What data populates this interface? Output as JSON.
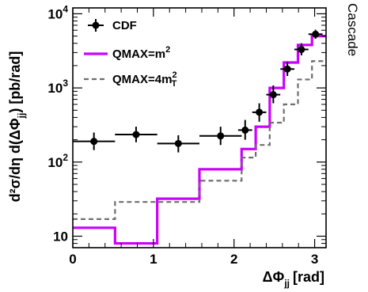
{
  "chart_data": {
    "type": "line",
    "side_label": "Cascade",
    "xlabel": {
      "main": "ΔΦ",
      "sub": "jj",
      "unit": "[rad]"
    },
    "ylabel": {
      "main": "d²σ/dη d(ΔΦ",
      "sub": "jj",
      "unit": ") [pb/rad]"
    },
    "xlim": [
      0,
      3.14159
    ],
    "ylim": [
      7,
      12000
    ],
    "yscale": "log",
    "x_ticks": [
      {
        "value": 0,
        "label": "0"
      },
      {
        "value": 1,
        "label": "1"
      },
      {
        "value": 2,
        "label": "2"
      },
      {
        "value": 3,
        "label": "3"
      }
    ],
    "y_ticks": [
      {
        "value": 10,
        "base": "10",
        "exp": ""
      },
      {
        "value": 100,
        "base": "10",
        "exp": "2"
      },
      {
        "value": 1000,
        "base": "10",
        "exp": "3"
      },
      {
        "value": 10000,
        "base": "10",
        "exp": "4"
      }
    ],
    "legend": {
      "position": "top-left",
      "entries": [
        {
          "key": "cdf",
          "text": "CDF",
          "sup": "",
          "sub": ""
        },
        {
          "key": "qmax_m2",
          "text": "QMAX=m",
          "sup": "2",
          "sub": ""
        },
        {
          "key": "qmax_4mt2",
          "text": "QMAX=4m",
          "sup": "2",
          "sub": "T"
        }
      ]
    },
    "series": [
      {
        "key": "cdf",
        "name": "CDF",
        "style": "points",
        "color": "#000000",
        "points": [
          {
            "x": 0.262,
            "y": 190,
            "xerr": 0.262,
            "ylo": 145,
            "yhi": 250
          },
          {
            "x": 0.785,
            "y": 235,
            "xerr": 0.262,
            "ylo": 185,
            "yhi": 300
          },
          {
            "x": 1.309,
            "y": 178,
            "xerr": 0.262,
            "ylo": 135,
            "yhi": 230
          },
          {
            "x": 1.833,
            "y": 225,
            "xerr": 0.262,
            "ylo": 170,
            "yhi": 300
          },
          {
            "x": 2.138,
            "y": 270,
            "xerr": 0.087,
            "ylo": 200,
            "yhi": 370
          },
          {
            "x": 2.313,
            "y": 470,
            "xerr": 0.087,
            "ylo": 350,
            "yhi": 620
          },
          {
            "x": 2.487,
            "y": 810,
            "xerr": 0.087,
            "ylo": 620,
            "yhi": 1080
          },
          {
            "x": 2.662,
            "y": 1800,
            "xerr": 0.087,
            "ylo": 1450,
            "yhi": 2250
          },
          {
            "x": 2.836,
            "y": 3300,
            "xerr": 0.087,
            "ylo": 2750,
            "yhi": 4000
          },
          {
            "x": 3.011,
            "y": 5300,
            "xerr": 0.087,
            "ylo": 4600,
            "yhi": 6100
          }
        ]
      },
      {
        "key": "qmax_m2",
        "name": "QMAX=m²",
        "style": "step",
        "color": "#cc00ff",
        "edges": [
          0,
          0.524,
          1.047,
          1.571,
          2.094,
          2.269,
          2.443,
          2.618,
          2.793,
          2.967,
          3.14159
        ],
        "values": [
          13,
          8,
          32,
          80,
          150,
          300,
          1000,
          2200,
          3800,
          5000
        ]
      },
      {
        "key": "qmax_4mt2",
        "name": "QMAX=4m²_T",
        "style": "step-dashed",
        "color": "#6e6e6e",
        "edges": [
          0,
          0.524,
          1.047,
          1.571,
          2.094,
          2.269,
          2.443,
          2.618,
          2.793,
          2.967,
          3.14159
        ],
        "values": [
          17,
          29,
          29,
          56,
          115,
          170,
          340,
          600,
          1300,
          2300
        ]
      }
    ]
  }
}
